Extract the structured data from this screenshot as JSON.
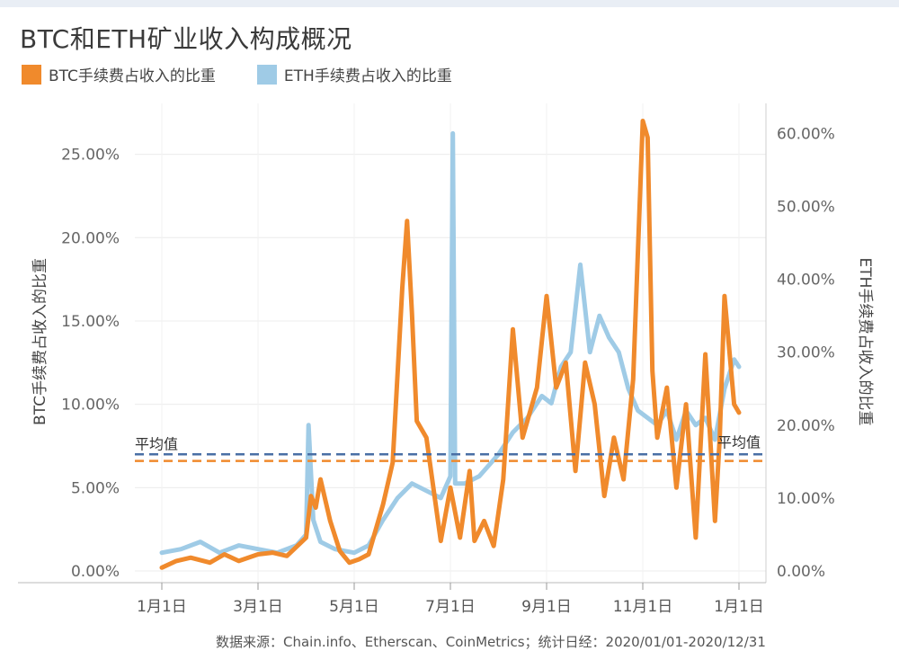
{
  "header": {
    "title": "BTC和ETH矿业收入构成概况"
  },
  "legend": {
    "btc_label": "BTC手续费占收入的比重",
    "eth_label": "ETH手续费占收入的比重"
  },
  "colors": {
    "btc": "#f08a2c",
    "eth": "#9fcbe6",
    "avg_line": "#4a6fa5",
    "btc_avg_line": "#f08a2c"
  },
  "footer": {
    "source": "数据来源：Chain.info、Etherscan、CoinMetrics；统计日经：2020/01/01-2020/12/31"
  },
  "chart_data": {
    "type": "line",
    "x_ticks": [
      "1月1日",
      "3月1日",
      "5月1日",
      "7月1日",
      "9月1日",
      "11月1日",
      "1月1日"
    ],
    "x_tick_months": [
      0,
      2,
      4,
      6,
      8,
      10,
      12
    ],
    "left_axis": {
      "label": "BTC手续费占收入的比重",
      "ticks": [
        "0.00%",
        "5.00%",
        "10.00%",
        "15.00%",
        "20.00%",
        "25.00%"
      ],
      "ylim": [
        0,
        28
      ]
    },
    "right_axis": {
      "label": "ETH手续费占收入的比重",
      "ticks": [
        "0.00%",
        "10.00%",
        "20.00%",
        "30.00%",
        "40.00%",
        "50.00%",
        "60.00%"
      ],
      "ylim": [
        0,
        64
      ]
    },
    "avg_label_left": "平均值",
    "avg_label_right": "平均值",
    "averages": {
      "eth": 16.0,
      "btc": 6.6
    },
    "series": [
      {
        "name": "BTC手续费占收入的比重",
        "axis": "left",
        "x": [
          0.0,
          0.3,
          0.6,
          1.0,
          1.3,
          1.6,
          2.0,
          2.3,
          2.6,
          3.0,
          3.1,
          3.2,
          3.3,
          3.5,
          3.7,
          3.9,
          4.1,
          4.3,
          4.6,
          4.8,
          5.0,
          5.1,
          5.2,
          5.3,
          5.5,
          5.8,
          6.0,
          6.2,
          6.4,
          6.5,
          6.7,
          6.9,
          7.1,
          7.3,
          7.5,
          7.8,
          8.0,
          8.2,
          8.4,
          8.6,
          8.8,
          9.0,
          9.2,
          9.4,
          9.6,
          9.8,
          10.0,
          10.1,
          10.2,
          10.3,
          10.5,
          10.7,
          10.9,
          11.1,
          11.3,
          11.5,
          11.6,
          11.7,
          11.9,
          12.0
        ],
        "y": [
          0.2,
          0.6,
          0.8,
          0.5,
          1.0,
          0.6,
          1.0,
          1.1,
          0.9,
          2.0,
          4.5,
          3.8,
          5.5,
          3.0,
          1.2,
          0.5,
          0.7,
          1.0,
          4.0,
          6.5,
          17.0,
          21.0,
          15.5,
          9.0,
          8.0,
          1.8,
          5.0,
          2.0,
          6.0,
          1.8,
          3.0,
          1.5,
          5.5,
          14.5,
          8.0,
          11.0,
          16.5,
          11.0,
          12.5,
          6.0,
          12.5,
          10.0,
          4.5,
          8.0,
          5.5,
          11.5,
          27.0,
          26.0,
          12.0,
          8.0,
          11.0,
          5.0,
          10.0,
          2.0,
          13.0,
          3.0,
          8.0,
          16.5,
          10.0,
          9.5
        ]
      },
      {
        "name": "ETH手续费占收入的比重",
        "axis": "right",
        "x": [
          0.0,
          0.4,
          0.8,
          1.2,
          1.6,
          2.0,
          2.4,
          2.8,
          3.0,
          3.05,
          3.15,
          3.3,
          3.6,
          4.0,
          4.3,
          4.6,
          4.9,
          5.2,
          5.5,
          5.8,
          6.0,
          6.05,
          6.1,
          6.3,
          6.6,
          7.0,
          7.3,
          7.6,
          7.9,
          8.1,
          8.3,
          8.5,
          8.7,
          8.9,
          9.1,
          9.3,
          9.5,
          9.7,
          9.9,
          10.1,
          10.3,
          10.5,
          10.7,
          10.9,
          11.1,
          11.3,
          11.5,
          11.7,
          11.9,
          12.0
        ],
        "y": [
          2.5,
          3.0,
          4.0,
          2.5,
          3.5,
          3.0,
          2.5,
          3.5,
          5.0,
          20.0,
          7.0,
          4.0,
          3.0,
          2.5,
          3.5,
          7.0,
          10.0,
          12.0,
          11.0,
          10.0,
          13.0,
          60.0,
          12.0,
          12.0,
          13.0,
          16.0,
          19.0,
          21.0,
          24.0,
          23.0,
          28.0,
          30.0,
          42.0,
          30.0,
          35.0,
          32.0,
          30.0,
          25.0,
          22.0,
          21.0,
          20.0,
          22.0,
          18.0,
          22.0,
          20.0,
          21.0,
          18.0,
          25.0,
          29.0,
          28.0
        ]
      }
    ]
  }
}
